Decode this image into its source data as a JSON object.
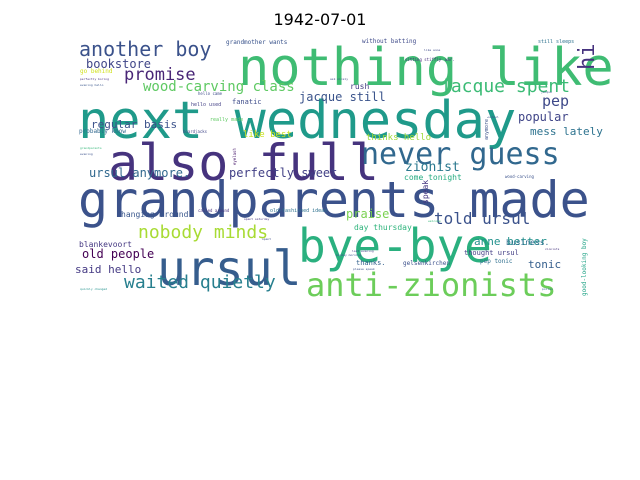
{
  "colors": {
    "background": "#ffffff",
    "title": "#000000",
    "viridis": [
      "#440154",
      "#472f7d",
      "#3b518b",
      "#2c718e",
      "#21918c",
      "#27ad81",
      "#5cc863",
      "#aadc32",
      "#fde725"
    ]
  },
  "chart_data": {
    "type": "wordcloud",
    "title": "1942-07-01",
    "colormap": "viridis",
    "words": [
      {
        "text": "nothing like",
        "weight": 48,
        "color": "#3fbc73"
      },
      {
        "text": "next wednesday",
        "weight": 48,
        "color": "#1f9a8a"
      },
      {
        "text": "also full",
        "weight": 46,
        "color": "#46337e"
      },
      {
        "text": "grandparents made",
        "weight": 46,
        "color": "#3b528b"
      },
      {
        "text": "bye-bye",
        "weight": 42,
        "color": "#2ab07f"
      },
      {
        "text": "ursul",
        "weight": 42,
        "color": "#365d8d"
      },
      {
        "text": "anti-zionists",
        "weight": 30,
        "color": "#6ccd5a"
      },
      {
        "text": "never guess",
        "weight": 28,
        "color": "#31688e"
      },
      {
        "text": "another boy",
        "weight": 20,
        "color": "#3b528b"
      },
      {
        "text": "jacque spent",
        "weight": 18,
        "color": "#3bbb75"
      },
      {
        "text": "promise",
        "weight": 16,
        "color": "#482576"
      },
      {
        "text": "nobody minds",
        "weight": 16,
        "color": "#a8db34"
      },
      {
        "text": "waited quietly",
        "weight": 16,
        "color": "#277f8e"
      },
      {
        "text": "hi",
        "weight": 18,
        "color": "#46327e"
      },
      {
        "text": "told ursul",
        "weight": 14,
        "color": "#3b528b"
      },
      {
        "text": "pep",
        "weight": 14,
        "color": "#3e4989"
      },
      {
        "text": "wood-carving class",
        "weight": 12,
        "color": "#5ec962"
      },
      {
        "text": "bookstore",
        "weight": 11,
        "color": "#404688"
      },
      {
        "text": "zionist",
        "weight": 11,
        "color": "#2a788e"
      },
      {
        "text": "perfectly sweet",
        "weight": 11,
        "color": "#424086"
      },
      {
        "text": "jacque still",
        "weight": 10,
        "color": "#3a538b"
      },
      {
        "text": "popular",
        "weight": 10,
        "color": "#404588"
      },
      {
        "text": "ursul anymore.",
        "weight": 10,
        "color": "#31688e"
      },
      {
        "text": "old people",
        "weight": 10,
        "color": "#440154"
      },
      {
        "text": "praise",
        "weight": 10,
        "color": "#7ad151"
      },
      {
        "text": "anne better",
        "weight": 9,
        "color": "#21918c"
      },
      {
        "text": "regular basis",
        "weight": 9,
        "color": "#3b528b"
      },
      {
        "text": "mess lately",
        "weight": 9,
        "color": "#2c728e"
      },
      {
        "text": "tonic",
        "weight": 10,
        "color": "#355f8d"
      },
      {
        "text": "said hello",
        "weight": 10,
        "color": "#443983"
      },
      {
        "text": "thinks hello",
        "weight": 8,
        "color": "#9fda3a"
      },
      {
        "text": "like best",
        "weight": 8,
        "color": "#c8e020"
      },
      {
        "text": "come tonight",
        "weight": 7,
        "color": "#25ac82"
      },
      {
        "text": "hanging around",
        "weight": 7,
        "color": "#39568c"
      },
      {
        "text": "blankevoort",
        "weight": 7,
        "color": "#453882"
      },
      {
        "text": "day thursday",
        "weight": 7,
        "color": "#2fb47c"
      },
      {
        "text": "speak",
        "weight": 7,
        "color": "#453781"
      },
      {
        "text": "business.",
        "weight": 7,
        "color": "#2e6d8e"
      },
      {
        "text": "fanatic",
        "weight": 7,
        "color": "#3e4c8a"
      },
      {
        "text": "rush",
        "weight": 7,
        "color": "#443a83"
      },
      {
        "text": "thanks.",
        "weight": 6,
        "color": "#34618d"
      },
      {
        "text": "gelsenkirchen",
        "weight": 6,
        "color": "#3c508b"
      },
      {
        "text": "pep tonic",
        "weight": 6,
        "color": "#2e6f8e"
      },
      {
        "text": "thought ursul",
        "weight": 6,
        "color": "#433e85"
      },
      {
        "text": "good-looking boy",
        "weight": 6,
        "color": "#20a386"
      },
      {
        "text": "probably know",
        "weight": 5,
        "color": "#31688e"
      },
      {
        "text": "go behind",
        "weight": 5,
        "color": "#d0e11c"
      },
      {
        "text": "without batting",
        "weight": 5,
        "color": "#3e4a89"
      },
      {
        "text": "grandmother wants",
        "weight": 5,
        "color": "#3a548c"
      },
      {
        "text": "old-fashioned ideas",
        "weight": 5,
        "color": "#2d708e"
      },
      {
        "text": "really made",
        "weight": 5,
        "color": "#5ec962"
      },
      {
        "text": "still sleeps",
        "weight": 4,
        "color": "#2c718e"
      },
      {
        "text": "called around",
        "weight": 4,
        "color": "#46307e"
      },
      {
        "text": "boardjacks",
        "weight": 4,
        "color": "#404688"
      },
      {
        "text": "eyelash",
        "weight": 4,
        "color": "#481a6c"
      },
      {
        "text": "anymore.",
        "weight": 4,
        "color": "#3b528b"
      },
      {
        "text": "hello used",
        "weight": 4,
        "color": "#423f85"
      },
      {
        "text": "hello came",
        "weight": 4,
        "color": "#3e4c8a"
      },
      {
        "text": "wood-carving",
        "weight": 4,
        "color": "#3b528b"
      },
      {
        "text": "sitting stiffly",
        "weight": 4,
        "color": "#472d7b"
      },
      {
        "text": "war.",
        "weight": 4,
        "color": "#46307e"
      },
      {
        "text": "like anne",
        "weight": 3,
        "color": "#3e4a89"
      },
      {
        "text": "evening hello",
        "weight": 3,
        "color": "#39568c"
      },
      {
        "text": "perfectly boring",
        "weight": 3,
        "color": "#46307e"
      },
      {
        "text": "grandparents",
        "weight": 3,
        "color": "#35b779"
      },
      {
        "text": "evening",
        "weight": 3,
        "color": "#3b528b"
      },
      {
        "text": "quickly changed",
        "weight": 3,
        "color": "#21918c"
      },
      {
        "text": "last evening",
        "weight": 3,
        "color": "#433e85"
      },
      {
        "text": "monday morning",
        "weight": 3,
        "color": "#3b528b"
      },
      {
        "text": "spent saturday",
        "weight": 3,
        "color": "#46327e"
      },
      {
        "text": "ask nicely",
        "weight": 3,
        "color": "#3e4a89"
      },
      {
        "text": "jacque",
        "weight": 3,
        "color": "#3b528b"
      },
      {
        "text": "zionists",
        "weight": 3,
        "color": "#46337e"
      },
      {
        "text": "pollen",
        "weight": 3,
        "color": "#31688e"
      },
      {
        "text": "school",
        "weight": 3,
        "color": "#3b528b"
      },
      {
        "text": "welcome",
        "weight": 3,
        "color": "#35b779"
      },
      {
        "text": "spent",
        "weight": 3,
        "color": "#3e4a89"
      },
      {
        "text": "please speak",
        "weight": 3,
        "color": "#3b528b"
      }
    ]
  }
}
